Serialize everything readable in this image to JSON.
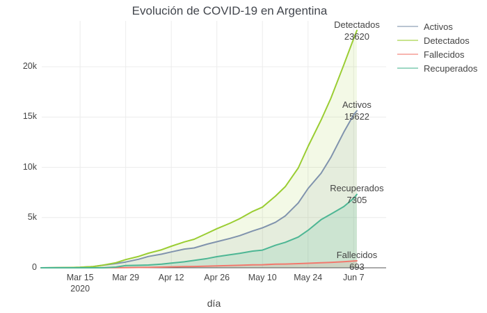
{
  "chart": {
    "title": "Evolución de COVID-19 en Argentina",
    "x_axis_title": "día"
  },
  "chart_data": {
    "type": "line",
    "title": "Evolución de COVID-19 en Argentina",
    "xlabel": "día",
    "ylabel": "",
    "grid": true,
    "ylim": [
      0,
      24200
    ],
    "x_dates": [
      "Mar 3",
      "Mar 8",
      "Mar 12",
      "Mar 15",
      "Mar 19",
      "Mar 22",
      "Mar 26",
      "Mar 29",
      "Apr 2",
      "Apr 5",
      "Apr 9",
      "Apr 12",
      "Apr 16",
      "Apr 19",
      "Apr 23",
      "Apr 26",
      "Apr 30",
      "May 3",
      "May 7",
      "May 10",
      "May 14",
      "May 17",
      "May 21",
      "May 24",
      "May 28",
      "May 31",
      "Jun 4",
      "Jun 7",
      "Jun 8"
    ],
    "x_days": [
      0,
      5,
      9,
      12,
      16,
      19,
      23,
      26,
      30,
      33,
      37,
      40,
      44,
      47,
      51,
      54,
      58,
      61,
      65,
      68,
      72,
      75,
      79,
      82,
      86,
      89,
      93,
      96,
      97
    ],
    "series": [
      {
        "name": "Activos",
        "color": "#8093ad",
        "fill_opacity": 0.12,
        "values": [
          1,
          11,
          29,
          51,
          122,
          259,
          421,
          572,
          849,
          1127,
          1358,
          1579,
          1860,
          1970,
          2351,
          2593,
          2918,
          3199,
          3659,
          3972,
          4527,
          5161,
          6453,
          7892,
          9406,
          10976,
          13501,
          15215,
          15622
        ],
        "end_annotation": {
          "label": "Activos",
          "value": "15622"
        }
      },
      {
        "name": "Detectados",
        "color": "#9acd32",
        "fill_opacity": 0.12,
        "values": [
          1,
          12,
          31,
          56,
          128,
          266,
          502,
          820,
          1133,
          1451,
          1795,
          2142,
          2571,
          2839,
          3435,
          3892,
          4428,
          4887,
          5611,
          6034,
          7134,
          8068,
          9931,
          12076,
          14702,
          16851,
          20197,
          22794,
          23620
        ],
        "end_annotation": {
          "label": "Detectados",
          "value": "23620"
        }
      },
      {
        "name": "Fallecidos",
        "color": "#f2786d",
        "fill_opacity": 0.15,
        "values": [
          0,
          1,
          1,
          2,
          3,
          4,
          9,
          20,
          36,
          44,
          72,
          95,
          115,
          132,
          165,
          192,
          218,
          246,
          293,
          305,
          363,
          373,
          416,
          452,
          508,
          539,
          608,
          670,
          693
        ],
        "end_annotation": {
          "label": "Fallecidos",
          "value": "693"
        }
      },
      {
        "name": "Recuperados",
        "color": "#4db694",
        "fill_opacity": 0.16,
        "values": [
          0,
          0,
          1,
          3,
          3,
          3,
          72,
          228,
          248,
          280,
          365,
          468,
          596,
          737,
          919,
          1107,
          1292,
          1442,
          1659,
          1757,
          2244,
          2534,
          3062,
          3732,
          4788,
          5336,
          6088,
          6909,
          7305
        ],
        "end_annotation": {
          "label": "Recuperados",
          "value": "7305"
        }
      }
    ],
    "y_ticks": [
      {
        "label": "0",
        "value": 0
      },
      {
        "label": "5k",
        "value": 5000
      },
      {
        "label": "10k",
        "value": 10000
      },
      {
        "label": "15k",
        "value": 15000
      },
      {
        "label": "20k",
        "value": 20000
      }
    ],
    "x_ticks": [
      {
        "label": "Mar 15",
        "sublabel": "2020",
        "day": 12
      },
      {
        "label": "Mar 29",
        "day": 26
      },
      {
        "label": "Apr 12",
        "day": 40
      },
      {
        "label": "Apr 26",
        "day": 54
      },
      {
        "label": "May 10",
        "day": 68
      },
      {
        "label": "May 24",
        "day": 82
      },
      {
        "label": "Jun 7",
        "day": 96
      }
    ],
    "legend": {
      "position": "top-right",
      "items": [
        "Activos",
        "Detectados",
        "Fallecidos",
        "Recuperados"
      ]
    },
    "colors": {
      "grid": "#ececec",
      "zeroline": "#545454",
      "text": "#444444",
      "title": "#42464d",
      "background": "#ffffff"
    }
  }
}
